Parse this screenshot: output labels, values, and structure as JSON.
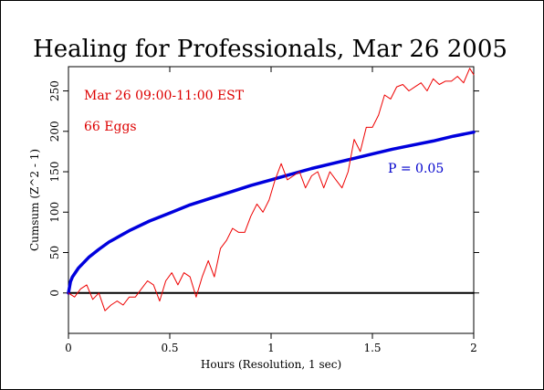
{
  "chart_data": {
    "type": "line",
    "title": "Healing for Professionals, Mar 26 2005",
    "xlabel": "Hours (Resolution, 1 sec)",
    "ylabel": "Cumsum (Z^2 - 1)",
    "xlim": [
      0,
      2
    ],
    "ylim": [
      -50,
      280
    ],
    "x_ticks": [
      0,
      0.5,
      1,
      1.5,
      2
    ],
    "x_tick_labels": [
      "0",
      "0.5",
      "1",
      "1.5",
      "2"
    ],
    "y_ticks": [
      0,
      50,
      100,
      150,
      200,
      250
    ],
    "y_tick_labels": [
      "0",
      "50",
      "100",
      "150",
      "200",
      "250"
    ],
    "grid": false,
    "annotations": [
      {
        "text": "Mar 26 09:00-11:00 EST",
        "color": "#dd0000"
      },
      {
        "text": "66 Eggs",
        "color": "#dd0000"
      },
      {
        "text": "P = 0.05",
        "color": "#0000cc"
      }
    ],
    "series": [
      {
        "role": "cumulative-deviation",
        "color": "#ee0000",
        "x": [
          0,
          0.03,
          0.06,
          0.09,
          0.12,
          0.15,
          0.18,
          0.21,
          0.24,
          0.27,
          0.3,
          0.33,
          0.36,
          0.39,
          0.42,
          0.45,
          0.48,
          0.51,
          0.54,
          0.57,
          0.6,
          0.63,
          0.66,
          0.69,
          0.72,
          0.75,
          0.78,
          0.81,
          0.84,
          0.87,
          0.9,
          0.93,
          0.96,
          0.99,
          1.02,
          1.05,
          1.08,
          1.11,
          1.14,
          1.17,
          1.2,
          1.23,
          1.26,
          1.29,
          1.32,
          1.35,
          1.38,
          1.41,
          1.44,
          1.47,
          1.5,
          1.53,
          1.56,
          1.59,
          1.62,
          1.65,
          1.68,
          1.71,
          1.74,
          1.77,
          1.8,
          1.83,
          1.86,
          1.89,
          1.92,
          1.95,
          1.98,
          2.0
        ],
        "values": [
          0,
          -5,
          5,
          10,
          -8,
          0,
          -22,
          -15,
          -10,
          -15,
          -5,
          -5,
          5,
          15,
          10,
          -10,
          15,
          25,
          10,
          25,
          20,
          -5,
          20,
          40,
          20,
          55,
          65,
          80,
          75,
          75,
          95,
          110,
          100,
          115,
          140,
          160,
          140,
          145,
          150,
          130,
          145,
          150,
          130,
          150,
          140,
          130,
          150,
          190,
          175,
          205,
          205,
          220,
          245,
          240,
          255,
          258,
          250,
          255,
          260,
          250,
          265,
          258,
          262,
          262,
          268,
          260,
          278,
          270
        ]
      },
      {
        "name": "P = 0.05",
        "role": "p-0.05-envelope",
        "color": "#0000dd",
        "formula": "1.645*sqrt(2*t)",
        "x": [
          0,
          0.01,
          0.02,
          0.05,
          0.1,
          0.15,
          0.2,
          0.3,
          0.4,
          0.5,
          0.6,
          0.7,
          0.8,
          0.9,
          1.0,
          1.1,
          1.2,
          1.3,
          1.4,
          1.5,
          1.6,
          1.7,
          1.8,
          1.9,
          2.0
        ],
        "values": [
          0,
          14,
          20,
          31,
          44,
          54,
          63,
          77,
          89,
          99,
          109,
          117,
          125,
          133,
          140,
          147,
          154,
          160,
          166,
          172,
          178,
          183,
          188,
          194,
          199
        ]
      },
      {
        "role": "zero-baseline",
        "color": "#000000",
        "x": [
          0,
          2
        ],
        "values": [
          0,
          0
        ]
      }
    ]
  }
}
